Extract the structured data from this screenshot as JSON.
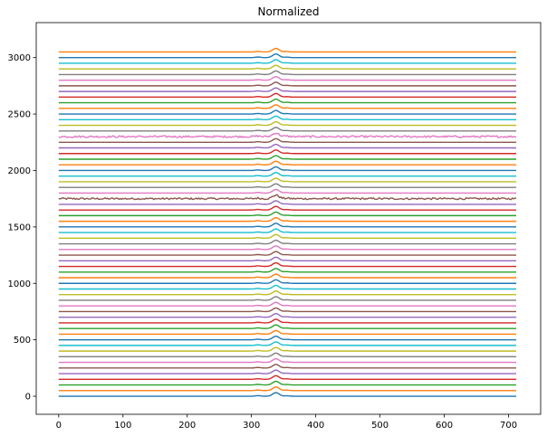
{
  "chart_data": {
    "type": "line",
    "title": "Normalized",
    "xlabel": "",
    "ylabel": "",
    "xlim": [
      -35,
      750
    ],
    "ylim": [
      -160,
      3310
    ],
    "x_ticks": [
      0,
      100,
      200,
      300,
      400,
      500,
      600,
      700
    ],
    "y_ticks": [
      0,
      500,
      1000,
      1500,
      2000,
      2500,
      3000
    ],
    "grid": false,
    "legend": "none",
    "x_range": [
      0,
      712
    ],
    "series_count": 62,
    "series_offset_step": 50,
    "peak_x": 338,
    "peak_height": 32,
    "secondary_peaks": [
      {
        "x": 310,
        "height": 5
      },
      {
        "x": 355,
        "height": 4
      }
    ],
    "noisy_series_offsets": [
      1750,
      2300
    ],
    "colors": [
      "#1f77b4",
      "#ff7f0e",
      "#2ca02c",
      "#d62728",
      "#9467bd",
      "#8c564b",
      "#e377c2",
      "#7f7f7f",
      "#bcbd22",
      "#17becf"
    ]
  }
}
